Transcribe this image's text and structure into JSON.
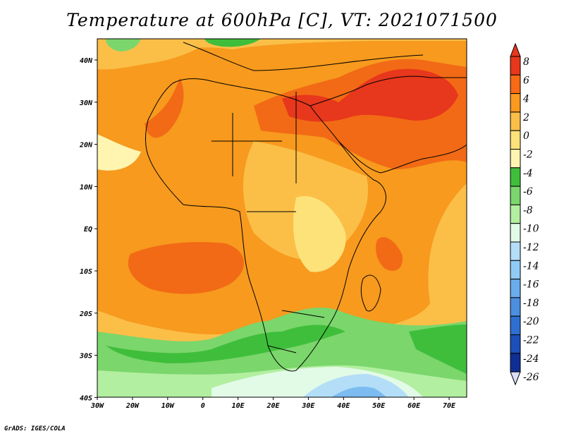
{
  "title": "Temperature at 600hPa [C], VT: 2021071500",
  "footer": "GrADS: IGES/COLA",
  "map": {
    "x_labels": [
      "30W",
      "20W",
      "10W",
      "0",
      "10E",
      "20E",
      "30E",
      "40E",
      "50E",
      "60E",
      "70E"
    ],
    "y_labels": [
      "40N",
      "30N",
      "20N",
      "10N",
      "EQ",
      "10S",
      "20S",
      "30S",
      "40S"
    ],
    "colors": {
      "frame": "#000000",
      "coast": "#000000",
      "c_8": "#e7371c",
      "c_6": "#f26a15",
      "c_4": "#f79a1e",
      "c_2": "#fbbf48",
      "c_0": "#fde27a",
      "c_m2": "#fff5b0",
      "c_m4": "#3fbe3b",
      "c_m6": "#7bd66c",
      "c_m8": "#b2efa0",
      "c_m10": "#e2fbe7",
      "c_m12": "#b4def8",
      "c_m14": "#7cbcf0"
    }
  },
  "colorbar": {
    "labels": [
      "8",
      "6",
      "4",
      "2",
      "0",
      "-2",
      "-4",
      "-6",
      "-8",
      "-10",
      "-12",
      "-14",
      "-16",
      "-18",
      "-20",
      "-22",
      "-24",
      "-26"
    ],
    "colors": [
      "#e8371c",
      "#f86a15",
      "#fb9a1e",
      "#fbbf48",
      "#fde27a",
      "#fff5b0",
      "#3fbe3b",
      "#7bd66c",
      "#b2efa0",
      "#e2fbe7",
      "#b4def8",
      "#90cbf5",
      "#6aadeb",
      "#4c8fe1",
      "#2f6fd1",
      "#1c4fb9",
      "#0f2f94",
      "#0a1463"
    ]
  }
}
